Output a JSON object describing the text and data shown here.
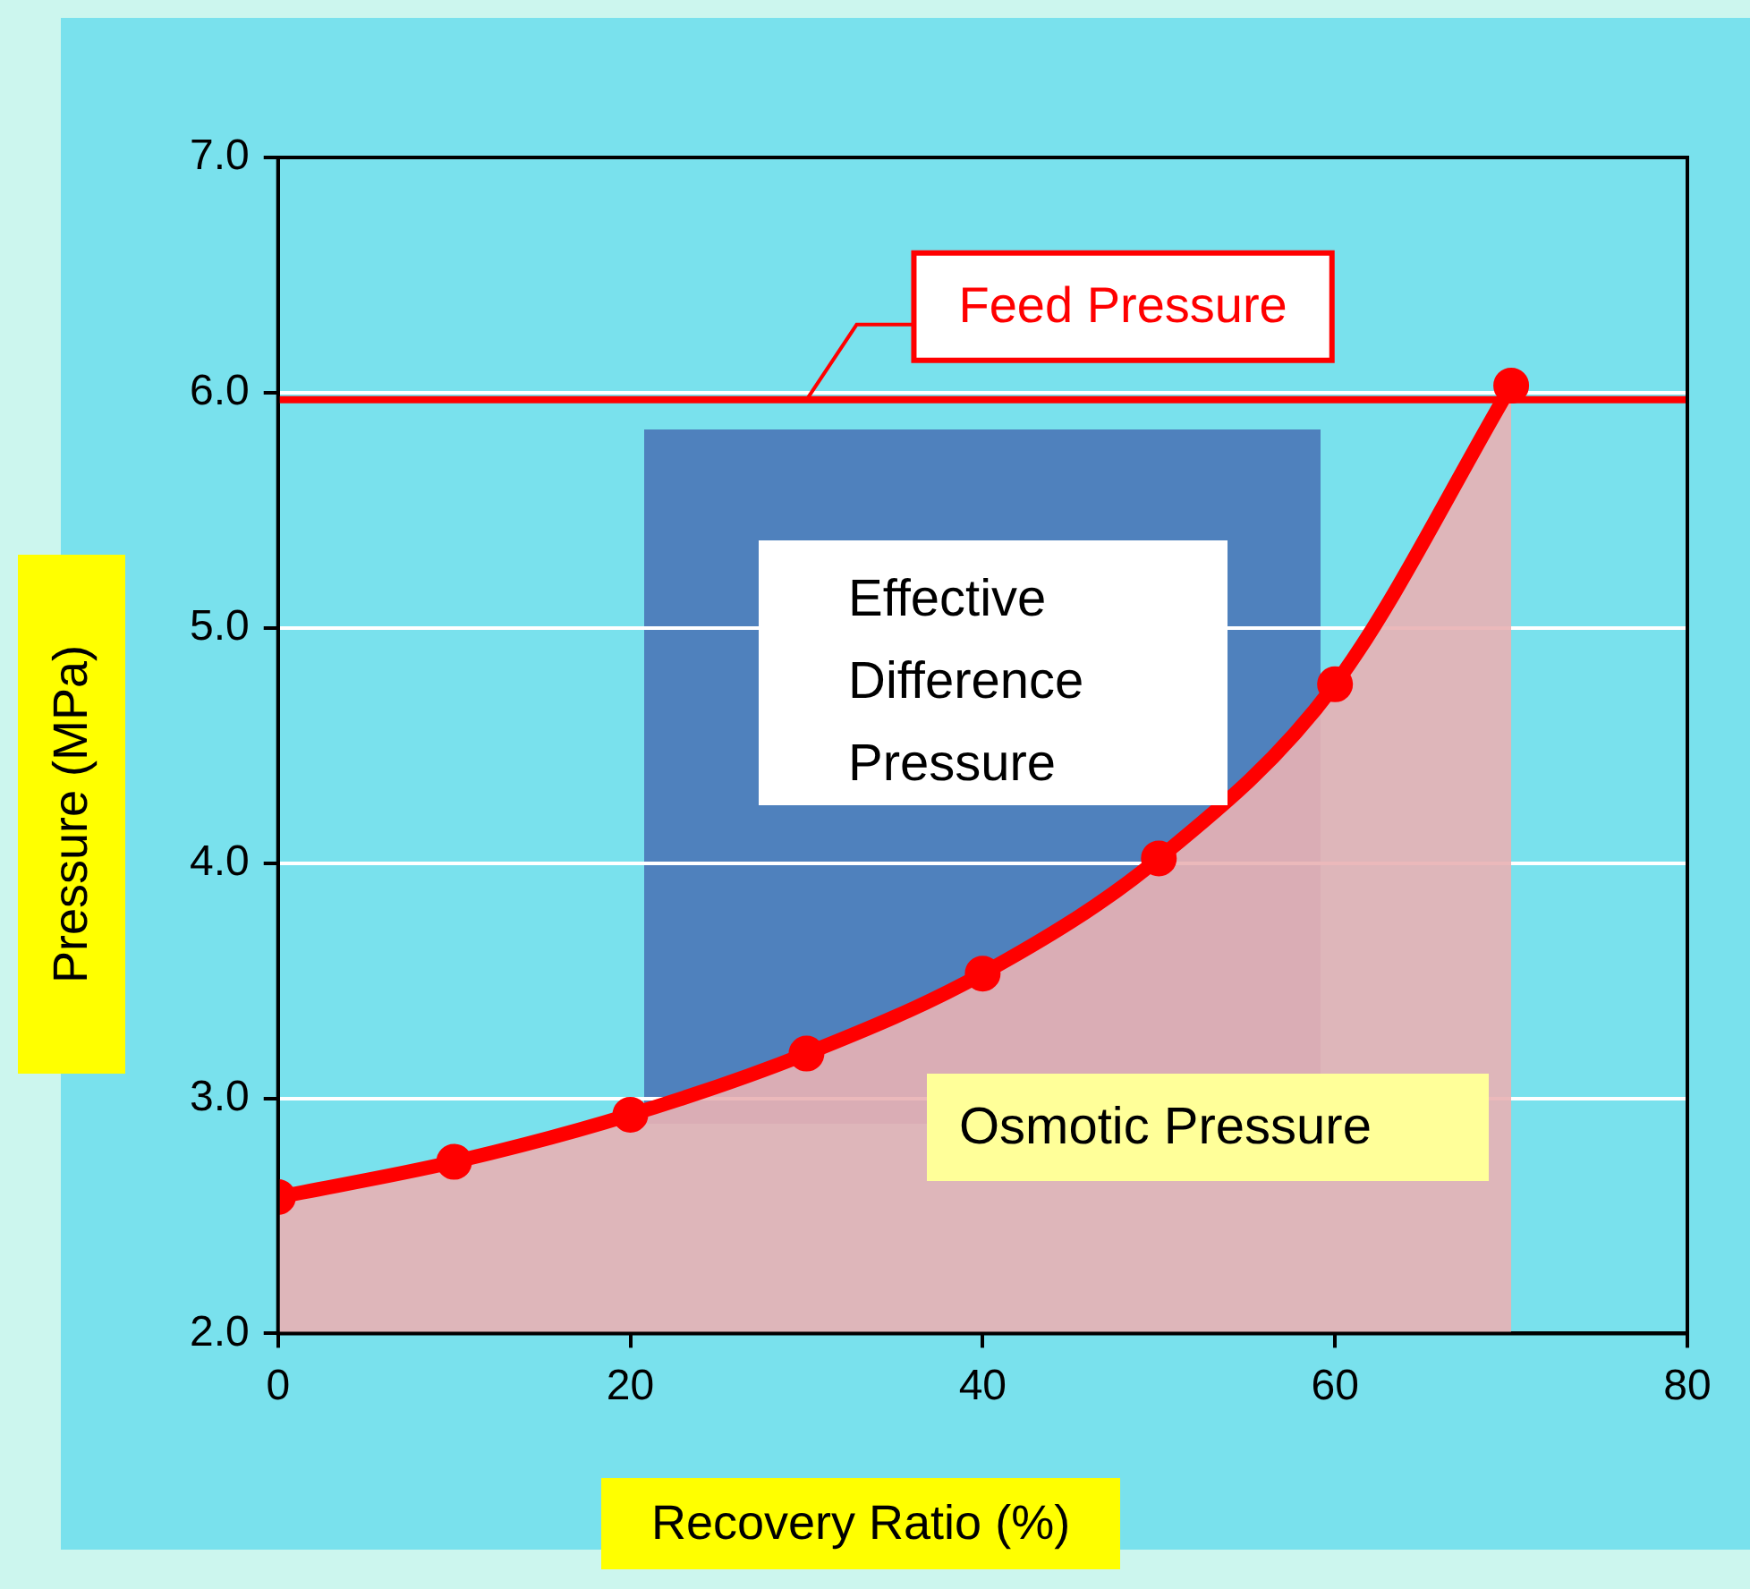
{
  "chart_data": {
    "type": "area",
    "xlabel": "Recovery Ratio (%)",
    "ylabel": "Pressure (MPa)",
    "x": [
      0,
      10,
      20,
      30,
      40,
      50,
      60,
      70
    ],
    "series": [
      {
        "color": "#ff0000",
        "values": [
          2.58,
          2.73,
          2.93,
          3.19,
          3.53,
          4.02,
          4.76,
          6.03
        ]
      }
    ],
    "xlim": [
      0,
      80
    ],
    "xticks": [
      0,
      20,
      40,
      60,
      80
    ],
    "ylim": [
      2,
      7
    ],
    "yticks": [
      {
        "value": 2,
        "label": "2.0"
      },
      {
        "value": 3,
        "label": "3.0"
      },
      {
        "value": 4,
        "label": "4.0"
      },
      {
        "value": 5,
        "label": "5.0"
      },
      {
        "value": 6,
        "label": "6.0"
      },
      {
        "value": 7,
        "label": "7.0"
      }
    ],
    "ref_lines": [
      {
        "axis": "y",
        "value": 5.97,
        "label": "Feed Pressure",
        "color": "#ff0000"
      }
    ],
    "annotations": [
      "Effective Difference Pressure",
      "Osmotic Pressure"
    ],
    "grid": "y",
    "marker": "circle",
    "legend": false
  }
}
